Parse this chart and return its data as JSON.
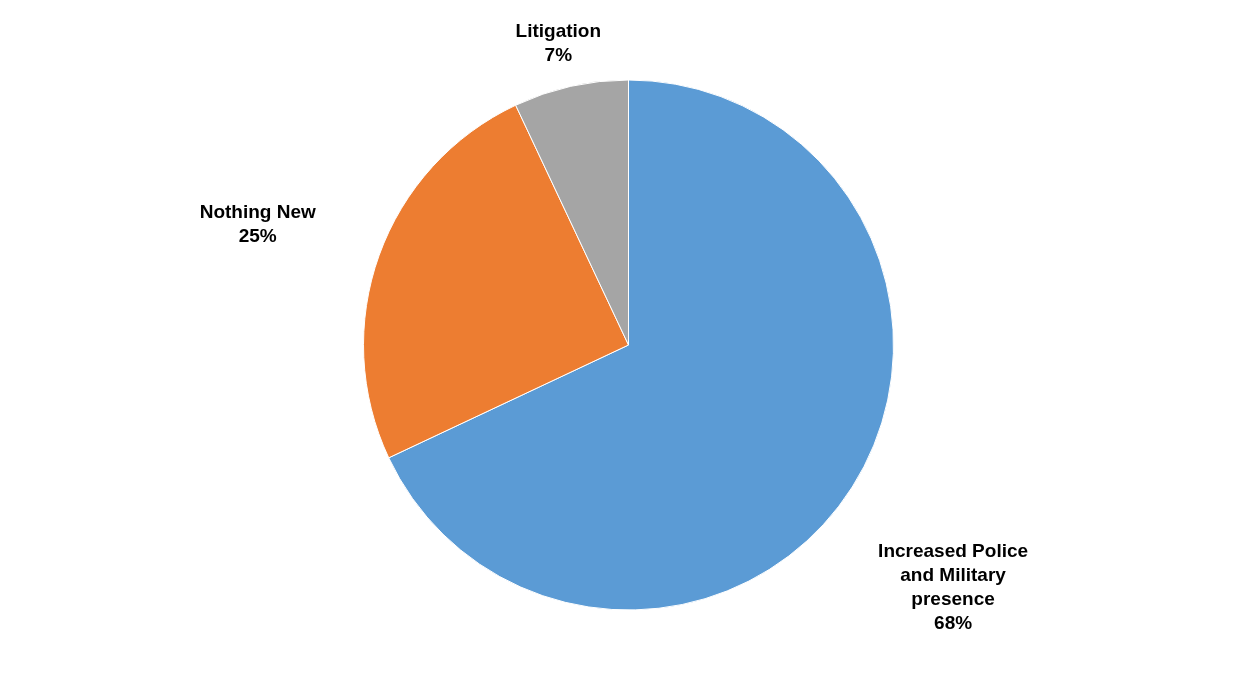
{
  "chart_data": {
    "type": "pie",
    "categories": [
      "Increased Police and Military presence",
      "Nothing New",
      "Litigation"
    ],
    "values": [
      68,
      25,
      7
    ],
    "colors": [
      "#5b9bd5",
      "#ed7d31",
      "#a5a5a5"
    ],
    "value_labels": [
      "68%",
      "25%",
      "7%"
    ]
  }
}
